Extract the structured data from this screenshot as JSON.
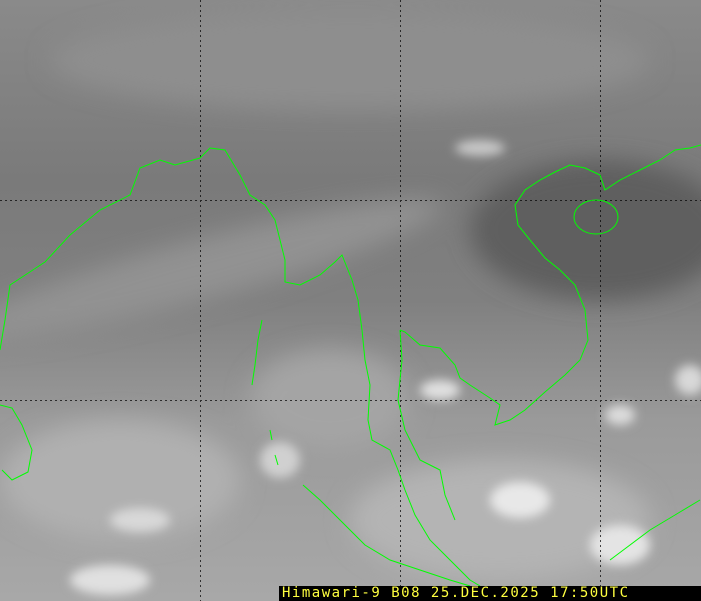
{
  "caption": "Himawari-9 B08 25.DEC.2025 17:50UTC",
  "colors": {
    "coastline": "#00ff00",
    "caption_text": "#ffff40",
    "grid": "#000000"
  }
}
